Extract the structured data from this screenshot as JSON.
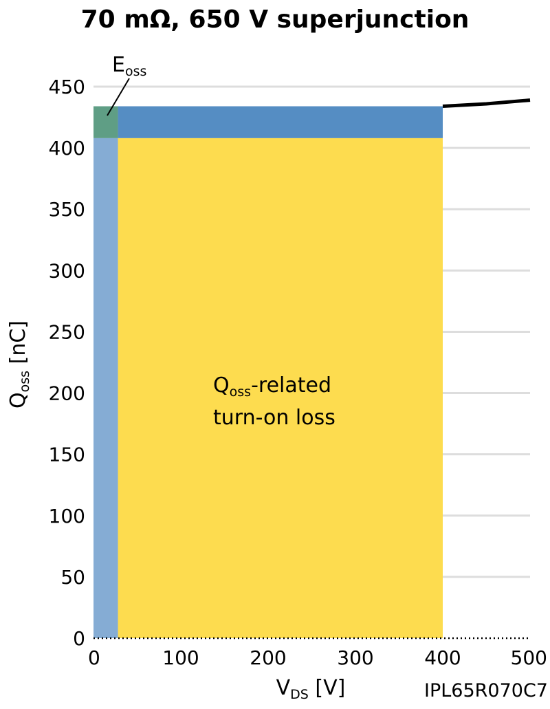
{
  "chart_data": {
    "type": "area",
    "title": "70 mΩ, 650 V superjunction",
    "xlabel": {
      "main": "V",
      "sub": "DS",
      "unit": " [V]"
    },
    "ylabel": {
      "main": "Q",
      "sub": "oss",
      "unit": " [nC]"
    },
    "xlim": [
      0,
      500
    ],
    "ylim": [
      0,
      450
    ],
    "x_ticks": [
      "0",
      "100",
      "200",
      "300",
      "400",
      "500"
    ],
    "y_ticks": [
      "0",
      "50",
      "100",
      "150",
      "200",
      "250",
      "300",
      "350",
      "400",
      "450"
    ],
    "x_tick_values": [
      0,
      100,
      200,
      300,
      400,
      500
    ],
    "y_tick_values": [
      0,
      50,
      100,
      150,
      200,
      250,
      300,
      350,
      400,
      450
    ],
    "grid": "horizontal",
    "qoss_curve": {
      "x": [
        0,
        28,
        28,
        400,
        450,
        500
      ],
      "y": [
        0,
        408,
        434,
        434,
        436,
        439
      ]
    },
    "regions": [
      {
        "name": "Qoss-related turn-on loss",
        "x": [
          28,
          400
        ],
        "y": [
          0,
          408
        ],
        "color": "#fddc4f"
      },
      {
        "name": "left-band",
        "x": [
          0,
          28
        ],
        "y": [
          0,
          408
        ],
        "color": "#85acd4"
      },
      {
        "name": "top-band",
        "x": [
          28,
          400
        ],
        "y": [
          408,
          434
        ],
        "color": "#558dc3"
      },
      {
        "name": "Eoss",
        "x": [
          0,
          28
        ],
        "y": [
          408,
          434
        ],
        "color": "#5f9e85"
      }
    ],
    "annotations": {
      "eoss": {
        "main": "E",
        "sub": "oss"
      },
      "loss_line1": {
        "main": "Q",
        "sub": "oss",
        "rest": "-related"
      },
      "loss_line2": "turn-on loss"
    },
    "part_number": "IPL65R070C7",
    "colors": {
      "grid": "#dddddd",
      "curve": "#000000",
      "axis": "#000000"
    }
  }
}
